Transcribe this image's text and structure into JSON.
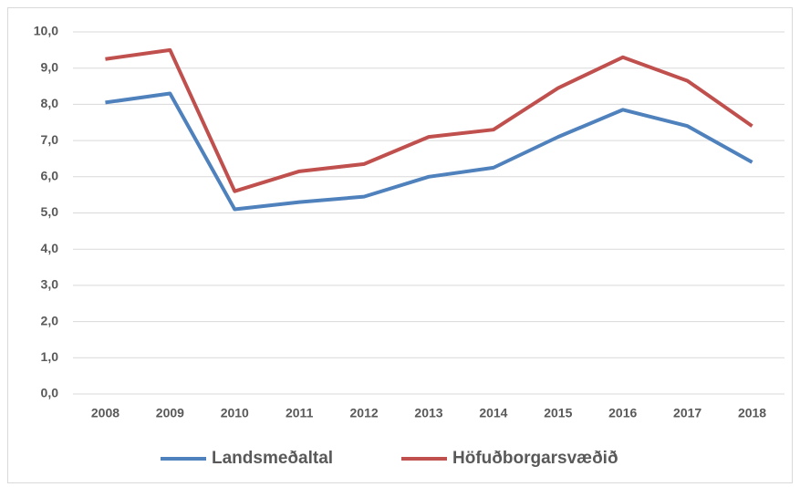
{
  "chart_data": {
    "type": "line",
    "categories": [
      "2008",
      "2009",
      "2010",
      "2011",
      "2012",
      "2013",
      "2014",
      "2015",
      "2016",
      "2017",
      "2018"
    ],
    "series": [
      {
        "name": "Landsmeðaltal",
        "color": "#4f81bd",
        "values": [
          8.05,
          8.3,
          5.1,
          5.3,
          5.45,
          6.0,
          6.25,
          7.1,
          7.85,
          7.4,
          6.4
        ]
      },
      {
        "name": "Höfuðborgarsvæðið",
        "color": "#c0504d",
        "values": [
          9.25,
          9.5,
          5.6,
          6.15,
          6.35,
          7.1,
          7.3,
          8.45,
          9.3,
          8.65,
          7.4
        ]
      }
    ],
    "ylim": [
      0,
      10
    ],
    "yticks": [
      {
        "value": 0,
        "label": "0,0"
      },
      {
        "value": 1,
        "label": "1,0"
      },
      {
        "value": 2,
        "label": "2,0"
      },
      {
        "value": 3,
        "label": "3,0"
      },
      {
        "value": 4,
        "label": "4,0"
      },
      {
        "value": 5,
        "label": "5,0"
      },
      {
        "value": 6,
        "label": "6,0"
      },
      {
        "value": 7,
        "label": "7,0"
      },
      {
        "value": 8,
        "label": "8,0"
      },
      {
        "value": 9,
        "label": "9,0"
      },
      {
        "value": 10,
        "label": "10,0"
      }
    ],
    "grid": true,
    "legend": "bottom"
  }
}
